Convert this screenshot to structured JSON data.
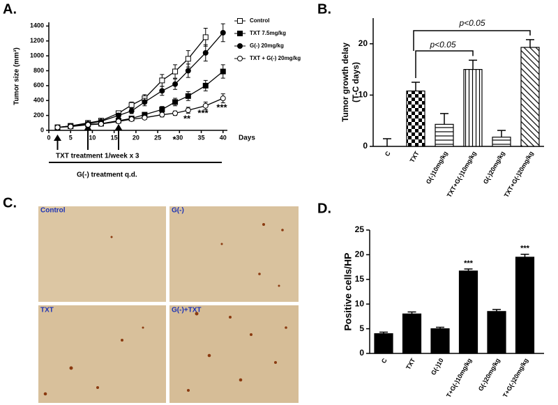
{
  "chart_data": [
    {
      "type": "line",
      "panel": "A.",
      "ylabel": "Tumor size (mm³)",
      "xlabel": "Days",
      "x": [
        2,
        5,
        9,
        12,
        16,
        19,
        22,
        26,
        29,
        32,
        36,
        40
      ],
      "xlim": [
        0,
        41
      ],
      "xticks": [
        0,
        5,
        10,
        15,
        20,
        25,
        30,
        35,
        40
      ],
      "ylim": [
        0,
        1450
      ],
      "yticks": [
        0,
        200,
        400,
        600,
        800,
        1000,
        1200,
        1400
      ],
      "series": [
        {
          "name": "Control",
          "color": "#000000",
          "marker": "square-open",
          "values": [
            40,
            60,
            100,
            130,
            230,
            340,
            430,
            670,
            790,
            960,
            1250,
            null
          ],
          "errors": [
            8,
            10,
            15,
            20,
            30,
            40,
            50,
            80,
            90,
            110,
            120,
            null
          ]
        },
        {
          "name": "TXT 7.5mg/kg",
          "color": "#000000",
          "marker": "square-filled",
          "values": [
            40,
            55,
            80,
            90,
            130,
            160,
            210,
            280,
            380,
            460,
            600,
            790
          ],
          "errors": [
            8,
            10,
            12,
            15,
            20,
            25,
            30,
            40,
            50,
            60,
            70,
            90
          ]
        },
        {
          "name": "G(-) 20mg/kg",
          "color": "#000000",
          "marker": "circle-filled",
          "values": [
            40,
            60,
            90,
            120,
            200,
            260,
            380,
            530,
            620,
            800,
            1040,
            1310
          ],
          "errors": [
            8,
            10,
            15,
            20,
            30,
            35,
            50,
            60,
            70,
            90,
            110,
            120
          ]
        },
        {
          "name": "TXT + G(-) 20mg/kg",
          "color": "#000000",
          "marker": "circle-open",
          "values": [
            40,
            50,
            75,
            85,
            120,
            150,
            170,
            210,
            230,
            270,
            330,
            430
          ],
          "errors": [
            8,
            10,
            12,
            15,
            18,
            20,
            25,
            30,
            30,
            40,
            50,
            60
          ]
        }
      ],
      "annotations": [
        "*",
        "**",
        "***",
        "***"
      ],
      "treatment_labels": [
        "TXT treatment 1/week x 3",
        "G(-) treatment q.d."
      ]
    },
    {
      "type": "bar",
      "panel": "B.",
      "ylabel": [
        "Tumor growth delay",
        "(T-C days)"
      ],
      "categories": [
        "C",
        "TXT",
        "G(-)10mg/kg",
        "TXT+G(-)10mg/kg",
        "G(-)20mg/kg",
        "TXT+G(-)20mg/kg"
      ],
      "values": [
        0,
        10.8,
        4.3,
        15,
        1.8,
        19.3
      ],
      "errors": [
        1.5,
        1.7,
        2.1,
        1.8,
        1.3,
        1.5
      ],
      "fills": [
        "white",
        "checker",
        "hlines",
        "vlines",
        "hlines",
        "diagonal"
      ],
      "ylim": [
        0,
        25
      ],
      "yticks": [
        0,
        10,
        20
      ],
      "annotations": [
        "p<0.05",
        "p<0.05"
      ]
    },
    {
      "type": "bar",
      "panel": "D.",
      "ylabel": "Positive cells/HP",
      "categories": [
        "C",
        "TXT",
        "G(-)10",
        "T+G(-)10mg/kg",
        "G(-)20mg/kg",
        "T+G(-)20mg/kg"
      ],
      "values": [
        4,
        8,
        5,
        16.7,
        8.5,
        19.5
      ],
      "errors": [
        0.3,
        0.4,
        0.3,
        0.4,
        0.4,
        0.6
      ],
      "color": "#000000",
      "ylim": [
        0,
        25
      ],
      "yticks": [
        0,
        5,
        10,
        15,
        20,
        25
      ],
      "annotations": [
        "***",
        "***"
      ]
    }
  ],
  "images": {
    "panel": "C.",
    "labels": [
      "Control",
      "G(-)",
      "TXT",
      "G(-)+TXT"
    ]
  }
}
